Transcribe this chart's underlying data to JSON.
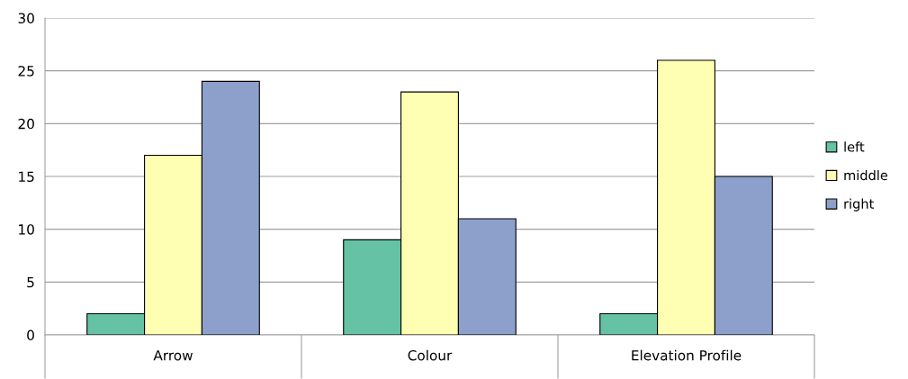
{
  "chart_data": {
    "type": "bar",
    "categories": [
      "Arrow",
      "Colour",
      "Elevation Profile"
    ],
    "series": [
      {
        "name": "left",
        "color": "#66c2a5",
        "values": [
          2,
          9,
          2
        ]
      },
      {
        "name": "middle",
        "color": "#ffffb3",
        "values": [
          17,
          23,
          26
        ]
      },
      {
        "name": "right",
        "color": "#8da0cb",
        "values": [
          24,
          11,
          15
        ]
      }
    ],
    "ylim": [
      0,
      30
    ],
    "yticks": [
      0,
      5,
      10,
      15,
      20,
      25,
      30
    ],
    "grid": "y",
    "legend": "right"
  }
}
